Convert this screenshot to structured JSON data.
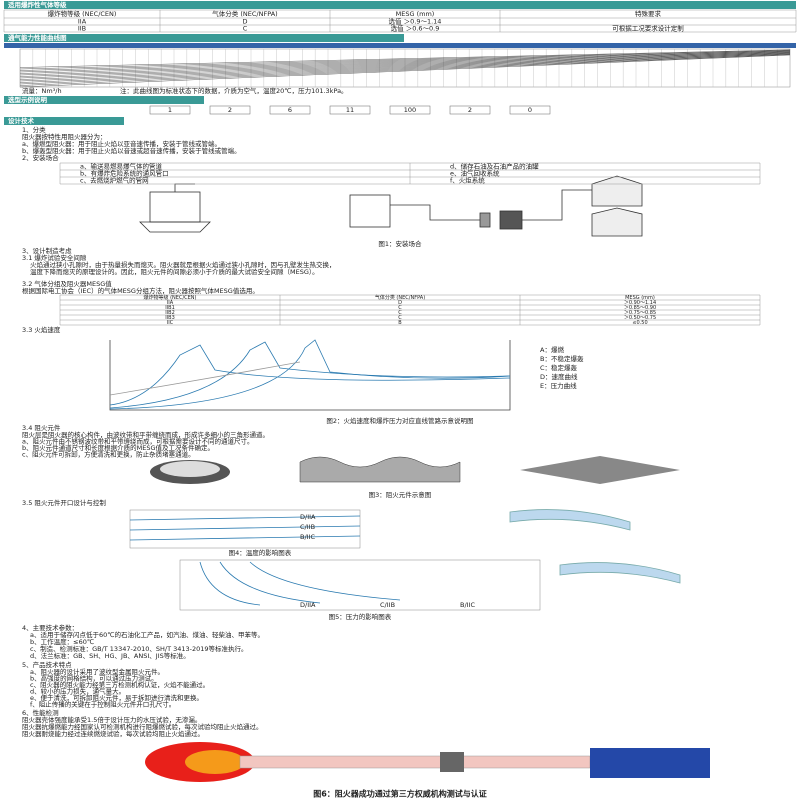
{
  "top_table": {
    "title": "适用爆炸性气体等级",
    "headers": [
      "爆炸物等级 (NEC/CEN)",
      "气体分类 (NEC/NFPA)",
      "MESG (mm)",
      "特殊要求"
    ],
    "rows": [
      [
        "IIA",
        "D",
        "选值 ＞0.9～1.14"
      ],
      [
        "IIB",
        "C",
        "选值 ＞0.6～0.9"
      ]
    ],
    "special": "可根据工况要求设计定制"
  },
  "curve_section": {
    "title": "通气能力性能曲线图",
    "flow_label": "流量：Nm³/h",
    "note": "注：此曲线图为标准状态下的数据，介质为空气，温度20℃，压力101.3kPa。"
  },
  "selection": {
    "title": "选型示例说明",
    "codes": [
      "1",
      "2",
      "6",
      "11",
      "100",
      "2",
      "0"
    ]
  },
  "design": {
    "title": "设计技术",
    "classify": {
      "heading": "1、分类",
      "intro": "阻火器按特性用阻火器分为：",
      "items": [
        "a、爆燃型阻火器：用于阻止火焰以亚音速传播，安装于管线或管端。",
        "b、爆轰型阻火器：用于阻止火焰以音速或超音速传播，安装于管线或管端。"
      ]
    },
    "install": {
      "heading": "2、安装场合",
      "items": [
        "a、输送易燃易爆气体的管道",
        "d、储存石油及石油产品的油罐",
        "b、有爆炸危险系统的通风管口",
        "e、油气回收系统",
        "c、去燃烧炉燃气的管网",
        "f、火炬系统"
      ],
      "caption": "图1：安装场合"
    },
    "consider": {
      "heading": "3、设计制造考虑",
      "sub1": "3.1 爆炸试验安全间隙",
      "para": [
        "火焰通过狭小孔隙时，由于热量损失而熄灭。阻火器就是根据火焰通过狭小孔隙时，因与孔壁发生热交换，",
        "温度下降而熄灭的原理设计的。因此，阻火元件的间隙必须小于介质的最大试验安全间隙（MESG）。"
      ],
      "sub2": "3.2 气体分组及阻火器MESG值",
      "sub2_text": "根据国际电工协会（IEC）的气体MESG分组方法，阻火器按照气体MESG值选用。"
    },
    "mesg_table": {
      "headers": [
        "爆炸物等级 (NEC/CEN)",
        "气体分类 (NEC/NFPA)",
        "MESG (mm)"
      ],
      "rows": [
        [
          "IIA",
          "D",
          "＞0.90～1.14"
        ],
        [
          "IIB1",
          "C",
          "＞0.85～0.90"
        ],
        [
          "IIB2",
          "C",
          "＞0.75～0.85"
        ],
        [
          "IIB3",
          "C",
          "＞0.50～0.75"
        ],
        [
          "IIC",
          "B",
          "≤0.50"
        ]
      ]
    },
    "speed": {
      "heading": "3.3 火焰速度",
      "legend": [
        "A：爆燃",
        "B：不稳定爆轰",
        "C：稳定爆轰",
        "D：速度曲线",
        "E：压力曲线"
      ],
      "caption": "图2：火焰速度和爆炸压力对应直线管路示意说明图"
    },
    "element": {
      "heading": "3.4 阻火元件",
      "lines": [
        "阻火层是阻火器的核心构件，由波纹带和平带缠绕而成，形成许多细小的三角形通道。",
        "a、阻火元件由不锈钢波纹带和平带缠绕而成，可根据需要设计不同的通道尺寸。",
        "b、阻火元件通道尺寸和长度根据介质的MESG值及工况条件确定。",
        "c、阻火元件可拆卸，方便清洗和更换，防止杂质堵塞通道。"
      ],
      "caption": "图3：阻火元件示意图"
    },
    "opening": {
      "heading": "3.5 阻火元件开口设计与控制",
      "fig4_labels": [
        "D/IIA",
        "C/IIB",
        "B/IIC"
      ],
      "fig4_caption": "图4：温度的影响图表",
      "fig5_labels": [
        "D/IIA",
        "C/IIB",
        "B/IIC"
      ],
      "fig5_caption": "图5：压力的影响图表"
    },
    "params": {
      "heading": "4、主要技术参数：",
      "items": [
        "a、适用于储存闪点低于60℃的石油化工产品，如汽油、煤油、轻柴油、甲苯等。",
        "b、工作温度：≤60℃",
        "c、制造、检测标准：GB/T 13347-2010、SH/T 3413-2019等标准执行。",
        "d、法兰标准：GB、SH、HG、JB、ANSI、JIS等标准。"
      ]
    },
    "features": {
      "heading": "5、产品技术特点",
      "items": [
        "a、阻火器的设计采用了波纹型金属阻火元件。",
        "b、高强度的网格结构，可以通过压力测试。",
        "c、阻火器的阻火能力经第三方检测机构认证，火焰不能通过。",
        "d、较小的压力损失，通气量大。",
        "e、便于清洗，可拆卸阻火元件，易于拆卸进行清洗和更换。",
        "f、阻止传播的关键在于控制阻火元件开口孔尺寸。"
      ]
    },
    "testing": {
      "heading": "6、性能检测",
      "items": [
        "阻火器壳体强度能承受1.5倍于设计压力的水压试验，无渗漏。",
        "阻火器抗爆燃能力经国家认可检测机构进行阻爆燃试验，每次试验均阻止火焰通过。",
        "阻火器耐烧能力经过连续燃烧试验，每次试验均阻止火焰通过。"
      ],
      "caption": "图6：阻火器成功通过第三方权威机构测试与认证"
    }
  }
}
